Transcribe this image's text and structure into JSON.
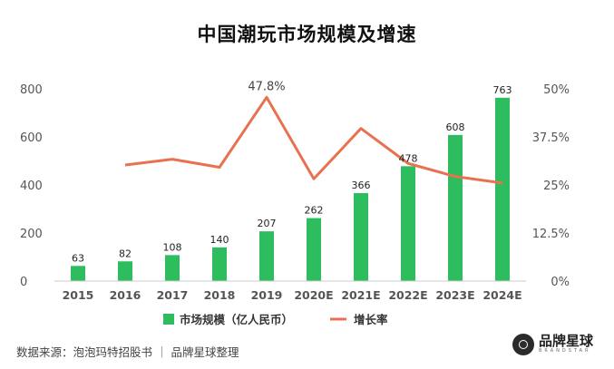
{
  "title": "中国潮玩市场规模及增速",
  "footer": {
    "source": "数据来源：泡泡玛特招股书 ｜ 品牌星球整理",
    "brand_name": "品牌星球",
    "brand_sub": "BRANDSTAR"
  },
  "colors": {
    "bar": "#2dbd5e",
    "line": "#e8724f",
    "axis": "#cccccc",
    "tick": "#555555"
  },
  "chart_data": {
    "type": "bar",
    "title": "中国潮玩市场规模及增速",
    "categories": [
      "2015",
      "2016",
      "2017",
      "2018",
      "2019",
      "2020E",
      "2021E",
      "2022E",
      "2023E",
      "2024E"
    ],
    "series": [
      {
        "name": "市场规模（亿人民币）",
        "type": "bar",
        "axis": "left",
        "values": [
          63,
          82,
          108,
          140,
          207,
          262,
          366,
          478,
          608,
          763
        ],
        "labels": [
          "63",
          "82",
          "108",
          "140",
          "207",
          "262",
          "366",
          "478",
          "608",
          "763"
        ]
      },
      {
        "name": "增长率",
        "type": "line",
        "axis": "right",
        "values": [
          null,
          30.2,
          31.7,
          29.6,
          47.8,
          26.6,
          39.7,
          30.6,
          27.2,
          25.5
        ],
        "annotation": {
          "index": 4,
          "text": "47.8%"
        }
      }
    ],
    "y_left": {
      "min": 0,
      "max": 800,
      "ticks": [
        "0",
        "200",
        "400",
        "600",
        "800"
      ]
    },
    "y_right": {
      "min": 0,
      "max": 50,
      "ticks": [
        "0%",
        "12.5%",
        "25%",
        "37.5%",
        "50%"
      ]
    },
    "legend": {
      "position": "bottom",
      "labels": [
        "市场规模（亿人民币）",
        "增长率"
      ]
    }
  }
}
